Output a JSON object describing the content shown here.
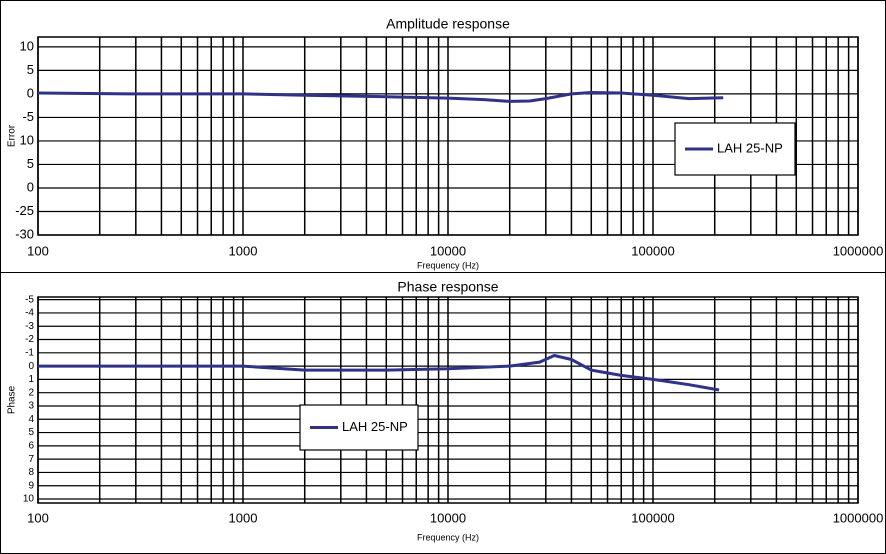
{
  "chart_data": [
    {
      "type": "line",
      "title": "Amplitude response",
      "x_label": "Frequency (Hz)",
      "y_label": "Error",
      "x": [
        100,
        300,
        1000,
        2000,
        5000,
        10000,
        15000,
        20000,
        25000,
        30000,
        40000,
        50000,
        70000,
        100000,
        150000,
        220000
      ],
      "series": [
        {
          "name": "LAH 25-NP",
          "color": "#2e3192",
          "values": [
            0.2,
            0,
            0,
            -0.3,
            -0.6,
            -0.9,
            -1.2,
            -1.6,
            -1.5,
            -1,
            0,
            0.3,
            0.2,
            -0.3,
            -1,
            -0.8
          ]
        }
      ],
      "xlim": [
        100,
        1000000
      ],
      "xticks": [
        100,
        1000,
        10000,
        100000,
        1000000
      ],
      "xlog": true,
      "ylim": [
        -30,
        12.1
      ],
      "yticks": [
        10,
        5,
        0,
        -5,
        {
          "value": -10,
          "label": "10"
        },
        {
          "value": -15,
          "label": "5"
        },
        {
          "value": -20,
          "label": "0"
        },
        -25,
        -30
      ],
      "grid": true
    },
    {
      "type": "line",
      "title": "Phase response",
      "x_label": "Frequency (Hz)",
      "y_label": "Phase",
      "x": [
        100,
        1000,
        2000,
        5000,
        10000,
        20000,
        28000,
        33000,
        40000,
        50000,
        70000,
        100000,
        150000,
        210000
      ],
      "series": [
        {
          "name": "LAH 25-NP",
          "color": "#2e3192",
          "values": [
            0,
            0,
            0.3,
            0.3,
            0.2,
            0,
            -0.3,
            -0.8,
            -0.5,
            0.3,
            0.7,
            1.0,
            1.4,
            1.8
          ]
        }
      ],
      "xlim": [
        100,
        1000000
      ],
      "xticks": [
        100,
        1000,
        10000,
        100000,
        1000000
      ],
      "xlog": true,
      "ylim": [
        10.3,
        -5.2
      ],
      "yticks": [
        -5,
        -4,
        -3,
        -2,
        -1,
        0,
        1,
        2,
        3,
        4,
        5,
        6,
        7,
        8,
        9,
        10
      ],
      "grid": true
    }
  ]
}
